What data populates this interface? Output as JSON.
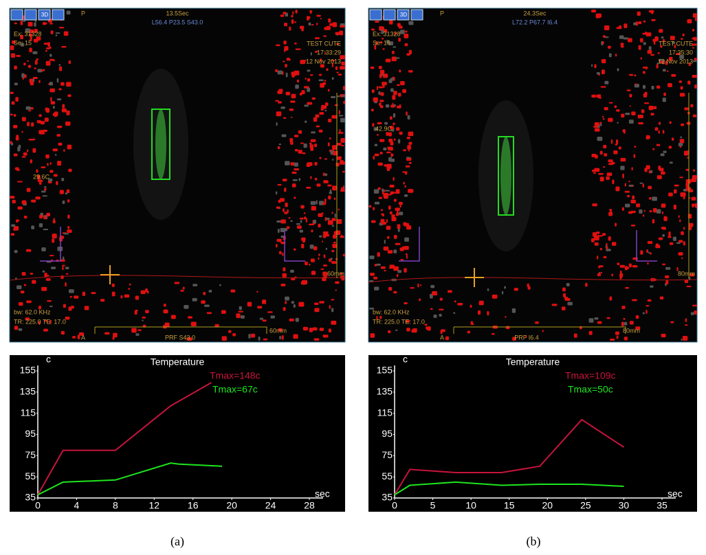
{
  "chart_data": [
    {
      "type": "line",
      "title": "Temperature",
      "y_label": "c",
      "x_label": "sec",
      "xlim": [
        0,
        28
      ],
      "xticks": [
        0,
        4,
        8,
        12,
        16,
        20,
        24,
        28
      ],
      "ylim": [
        35,
        155
      ],
      "yticks": [
        35,
        55,
        75,
        95,
        115,
        135,
        155
      ],
      "series": [
        {
          "name": "Tmax=148c",
          "color": "#c8143c",
          "x": [
            0,
            2.6,
            8,
            13.7,
            17.9
          ],
          "values": [
            38,
            80,
            80,
            122,
            144
          ]
        },
        {
          "name": "Tmax=67c",
          "color": "#1ee61e",
          "x": [
            0,
            2.6,
            8,
            13.7,
            14.5,
            19
          ],
          "values": [
            38,
            50,
            52,
            68,
            67,
            65
          ]
        }
      ]
    },
    {
      "type": "line",
      "title": "Temperature",
      "y_label": "c",
      "x_label": "sec",
      "xlim": [
        0,
        35
      ],
      "xticks": [
        0,
        5,
        10,
        15,
        20,
        25,
        30,
        35
      ],
      "ylim": [
        35,
        155
      ],
      "yticks": [
        35,
        55,
        75,
        95,
        115,
        135,
        155
      ],
      "series": [
        {
          "name": "Tmax=109c",
          "color": "#c8143c",
          "x": [
            0,
            2,
            8,
            14,
            19,
            24.5,
            30
          ],
          "values": [
            38,
            62,
            59,
            59,
            65,
            109,
            83
          ]
        },
        {
          "name": "Tmax=50c",
          "color": "#1ee61e",
          "x": [
            0,
            2,
            8,
            14,
            19,
            24.5,
            30
          ],
          "values": [
            38,
            47,
            50,
            47,
            48,
            48,
            46
          ]
        }
      ]
    }
  ],
  "images": [
    {
      "view_mode": "3D",
      "orient_top": "P",
      "time": "13.5Sec",
      "position": "L56.4 P23.5 S43.0",
      "exam": "Ex: 31328",
      "series": "Se: 15",
      "patient": "TEST CUTE",
      "clock": "17:33:29",
      "date": "12 Nov 2013",
      "temp": "29.6C",
      "depth": "60mm",
      "bandwidth": "bw: 62.0 KHz",
      "timing": "TR: 225.0 TE: 17.0",
      "orient_bottom": "A",
      "prf": "PRF  S43.0",
      "scale": "60mm"
    },
    {
      "view_mode": "3D",
      "orient_top": "P",
      "time": "24.3Sec",
      "position": "L72.2 P67.7 I6.4",
      "exam": "Ex: 31328",
      "series": "Se: 16",
      "patient": "TEST CUTE",
      "clock": "17:35:30",
      "date": "12 Nov 2013",
      "temp": "42.9C",
      "depth": "80mm",
      "bandwidth": "bw: 62.0 KHz",
      "timing": "TR: 225.0 TE: 17.0",
      "orient_bottom": "A",
      "prf": "PRF  I6.4",
      "scale": "80mm"
    }
  ],
  "panel_labels": [
    "(a)",
    "(b)"
  ]
}
